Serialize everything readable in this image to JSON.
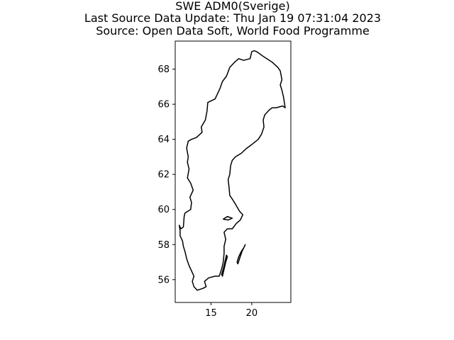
{
  "chart_data": {
    "type": "map",
    "title_lines": [
      "SWE ADM0(Sverige)",
      "Last Source Data Update: Thu Jan 19 07:31:04 2023",
      "Source: Open Data Soft, World Food Programme"
    ],
    "xlabel": "",
    "ylabel": "",
    "xlim": [
      10.6,
      24.8
    ],
    "ylim": [
      54.7,
      69.6
    ],
    "x_ticks": [
      15,
      20
    ],
    "y_ticks": [
      56,
      58,
      60,
      62,
      64,
      66,
      68
    ],
    "grid": false,
    "legend": "none",
    "outline_color": "#000000",
    "mainland": [
      [
        11.3,
        58.9
      ],
      [
        11.1,
        59.1
      ],
      [
        11.2,
        58.8
      ],
      [
        11.2,
        58.5
      ],
      [
        11.5,
        58.2
      ],
      [
        11.6,
        57.9
      ],
      [
        11.8,
        57.6
      ],
      [
        12.0,
        57.2
      ],
      [
        12.3,
        56.8
      ],
      [
        12.6,
        56.5
      ],
      [
        12.9,
        56.2
      ],
      [
        12.7,
        55.9
      ],
      [
        12.9,
        55.6
      ],
      [
        13.3,
        55.4
      ],
      [
        14.0,
        55.5
      ],
      [
        14.4,
        55.6
      ],
      [
        14.2,
        55.9
      ],
      [
        14.7,
        56.1
      ],
      [
        15.5,
        56.2
      ],
      [
        16.0,
        56.2
      ],
      [
        16.3,
        56.6
      ],
      [
        16.5,
        57.0
      ],
      [
        16.6,
        57.5
      ],
      [
        16.6,
        57.9
      ],
      [
        16.8,
        58.3
      ],
      [
        16.6,
        58.7
      ],
      [
        17.0,
        58.9
      ],
      [
        17.6,
        58.9
      ],
      [
        18.1,
        59.2
      ],
      [
        18.6,
        59.4
      ],
      [
        18.9,
        59.7
      ],
      [
        18.5,
        59.9
      ],
      [
        18.0,
        60.3
      ],
      [
        17.6,
        60.6
      ],
      [
        17.3,
        60.8
      ],
      [
        17.2,
        61.3
      ],
      [
        17.1,
        61.7
      ],
      [
        17.3,
        62.0
      ],
      [
        17.4,
        62.5
      ],
      [
        17.6,
        62.8
      ],
      [
        18.0,
        63.0
      ],
      [
        18.7,
        63.2
      ],
      [
        19.4,
        63.5
      ],
      [
        20.0,
        63.7
      ],
      [
        20.8,
        64.0
      ],
      [
        21.2,
        64.3
      ],
      [
        21.5,
        64.7
      ],
      [
        21.4,
        65.1
      ],
      [
        21.6,
        65.4
      ],
      [
        22.2,
        65.7
      ],
      [
        22.5,
        65.8
      ],
      [
        23.0,
        65.8
      ],
      [
        23.8,
        65.9
      ],
      [
        24.1,
        65.8
      ],
      [
        23.9,
        66.4
      ],
      [
        23.7,
        66.8
      ],
      [
        23.5,
        67.1
      ],
      [
        23.7,
        67.4
      ],
      [
        23.5,
        67.9
      ],
      [
        23.2,
        68.1
      ],
      [
        22.5,
        68.4
      ],
      [
        21.5,
        68.7
      ],
      [
        20.6,
        69.0
      ],
      [
        20.3,
        69.05
      ],
      [
        20.0,
        69.0
      ],
      [
        19.8,
        68.6
      ],
      [
        19.0,
        68.5
      ],
      [
        18.4,
        68.6
      ],
      [
        17.9,
        68.4
      ],
      [
        17.3,
        68.1
      ],
      [
        16.9,
        67.6
      ],
      [
        16.4,
        67.3
      ],
      [
        16.1,
        66.9
      ],
      [
        15.5,
        66.3
      ],
      [
        14.6,
        66.1
      ],
      [
        14.5,
        65.6
      ],
      [
        14.3,
        65.1
      ],
      [
        13.8,
        64.7
      ],
      [
        13.9,
        64.4
      ],
      [
        13.2,
        64.1
      ],
      [
        12.6,
        64.0
      ],
      [
        12.2,
        63.9
      ],
      [
        12.0,
        63.5
      ],
      [
        12.2,
        63.0
      ],
      [
        12.1,
        62.7
      ],
      [
        12.3,
        62.3
      ],
      [
        12.1,
        61.8
      ],
      [
        12.5,
        61.5
      ],
      [
        12.8,
        61.1
      ],
      [
        12.4,
        60.7
      ],
      [
        12.6,
        60.4
      ],
      [
        12.5,
        60.0
      ],
      [
        11.8,
        59.8
      ],
      [
        11.7,
        59.6
      ],
      [
        11.6,
        59.0
      ],
      [
        11.3,
        58.9
      ]
    ],
    "islands": [
      [
        [
          19.2,
          58.0
        ],
        [
          19.0,
          57.8
        ],
        [
          18.7,
          57.6
        ],
        [
          18.4,
          57.3
        ],
        [
          18.2,
          57.0
        ],
        [
          18.3,
          56.9
        ],
        [
          18.5,
          57.2
        ],
        [
          18.8,
          57.6
        ],
        [
          19.1,
          57.9
        ],
        [
          19.2,
          58.0
        ]
      ],
      [
        [
          16.9,
          57.4
        ],
        [
          16.7,
          57.0
        ],
        [
          16.5,
          56.6
        ],
        [
          16.3,
          56.3
        ],
        [
          16.4,
          56.2
        ],
        [
          16.6,
          56.6
        ],
        [
          16.8,
          57.0
        ],
        [
          17.0,
          57.3
        ],
        [
          16.9,
          57.4
        ]
      ],
      [
        [
          17.6,
          59.5
        ],
        [
          17.0,
          59.6
        ],
        [
          16.5,
          59.45
        ],
        [
          17.1,
          59.4
        ],
        [
          17.6,
          59.5
        ]
      ]
    ]
  }
}
